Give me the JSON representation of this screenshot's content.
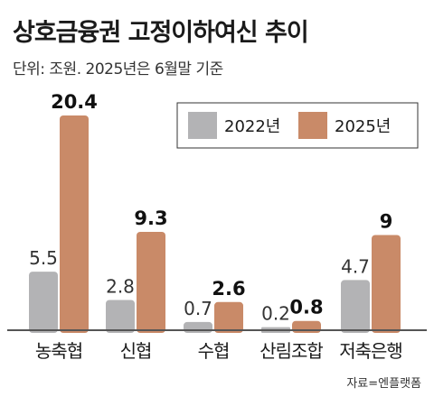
{
  "header": {
    "title": "상호금융권 고정이하여신 추이",
    "subtitle": "단위: 조원. 2025년은 6월말 기준"
  },
  "source": "자료=엔플랫폼",
  "colors": {
    "series_2022": "#b3b3b5",
    "series_2025": "#c98a68",
    "baseline": "#555555"
  },
  "chart_data": {
    "type": "bar",
    "categories": [
      "농축협",
      "신협",
      "수협",
      "산림조합",
      "저축은행"
    ],
    "series": [
      {
        "name": "2022년",
        "values": [
          5.5,
          2.8,
          0.7,
          0.2,
          4.7
        ]
      },
      {
        "name": "2025년",
        "values": [
          20.4,
          9.3,
          2.6,
          0.8,
          9
        ]
      }
    ],
    "value_labels": [
      [
        "5.5",
        "2.8",
        "0.7",
        "0.2",
        "4.7"
      ],
      [
        "20.4",
        "9.3",
        "2.6",
        "0.8",
        "9"
      ]
    ],
    "ylim": [
      0,
      20.4
    ],
    "legend_position": "top-right",
    "grid": false
  }
}
